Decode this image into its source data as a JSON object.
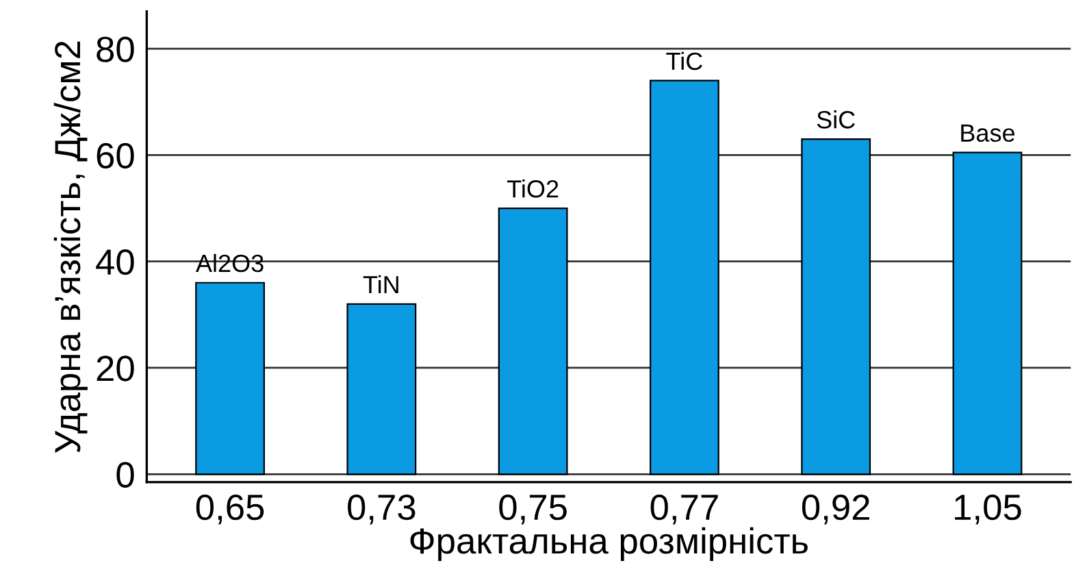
{
  "chart_data": {
    "type": "bar",
    "xlabel": "Фрактальна розмірність",
    "ylabel": "Ударна в’язкість, Дж/см2",
    "categories": [
      "0,65",
      "0,73",
      "0,75",
      "0,77",
      "0,92",
      "1,05"
    ],
    "values": [
      36,
      32,
      50,
      74,
      63,
      60.5
    ],
    "color": "#0a9be3",
    "ylim": [
      -1.5,
      87
    ],
    "yticks": [
      0,
      20,
      40,
      60,
      80
    ],
    "grid": "y",
    "annotations": [
      {
        "text": "Al2O3",
        "x": "0,65",
        "y": 36
      },
      {
        "text": "TiN",
        "x": "0,73",
        "y": 32
      },
      {
        "text": "TiO2",
        "x": "0,75",
        "y": 50
      },
      {
        "text": "TiC",
        "x": "0,77",
        "y": 74
      },
      {
        "text": "SiC",
        "x": "0,92",
        "y": 63
      },
      {
        "text": "Base",
        "x": "1,05",
        "y": 60.5
      }
    ]
  }
}
